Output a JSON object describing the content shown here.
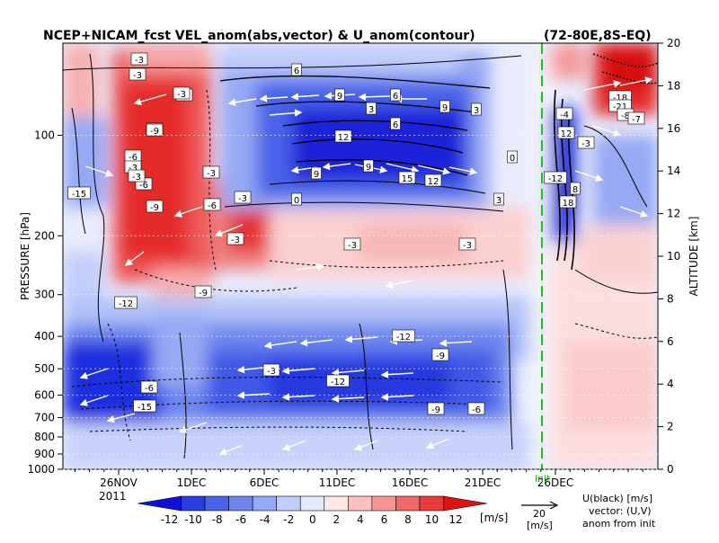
{
  "chart_data": {
    "type": "heatmap",
    "title": "NCEP+NICAM_fcst VEL_anom(abs,vector) & U_anom(contour)",
    "region": "(72-80E,8S-EQ)",
    "ylabel_left": "PRESSURE [hPa]",
    "ylabel_right": "ALTITUDE [km]",
    "pressure_ticks": [
      "100",
      "200",
      "300",
      "400",
      "500",
      "600",
      "700",
      "800",
      "900",
      "1000"
    ],
    "altitude_ticks": [
      "20",
      "18",
      "16",
      "14",
      "12",
      "10",
      "8",
      "6",
      "4",
      "2",
      "0"
    ],
    "x_ticks": [
      "26NOV",
      "1DEC",
      "6DEC",
      "11DEC",
      "16DEC",
      "21DEC",
      "26DEC"
    ],
    "year_label": "2011",
    "init_label": "init",
    "colorbar": {
      "ticks": [
        "-12",
        "-10",
        "-8",
        "-6",
        "-4",
        "-2",
        "0",
        "2",
        "4",
        "6",
        "8",
        "10",
        "12"
      ],
      "unit": "[m/s]",
      "colors": [
        "#1010d8",
        "#2a3ee0",
        "#4a64e8",
        "#6e86ee",
        "#97a9f4",
        "#c2cdfa",
        "#e4e9fd",
        "#fde6e6",
        "#fbc1c1",
        "#f69595",
        "#f06868",
        "#e83c3c",
        "#dd1414"
      ]
    },
    "ref_vector": {
      "value": "20",
      "unit": "[m/s]"
    },
    "legend_notes": [
      "U(black) [m/s]",
      "vector: (U,V)",
      "anom from init"
    ],
    "contour_labels": [
      "-3",
      "-3",
      "-6",
      "-9",
      "-6",
      "-9",
      "-6",
      "-3",
      "-3",
      "6",
      "-9",
      "-3",
      "-3",
      "0",
      "-12",
      "-15",
      "-9",
      "-3",
      "9",
      "12",
      "9",
      "15",
      "12",
      "9",
      "3",
      "0",
      "3",
      "6",
      "-6",
      "-3",
      "-3",
      "-12",
      "-12",
      "-9",
      "-6",
      "-3",
      "-9",
      "-6",
      "-15",
      "-18",
      "-21",
      "-8",
      "-3",
      "-7",
      "-4",
      "-12",
      "18",
      "12",
      "8",
      "9",
      "6",
      "3",
      "-3"
    ]
  }
}
